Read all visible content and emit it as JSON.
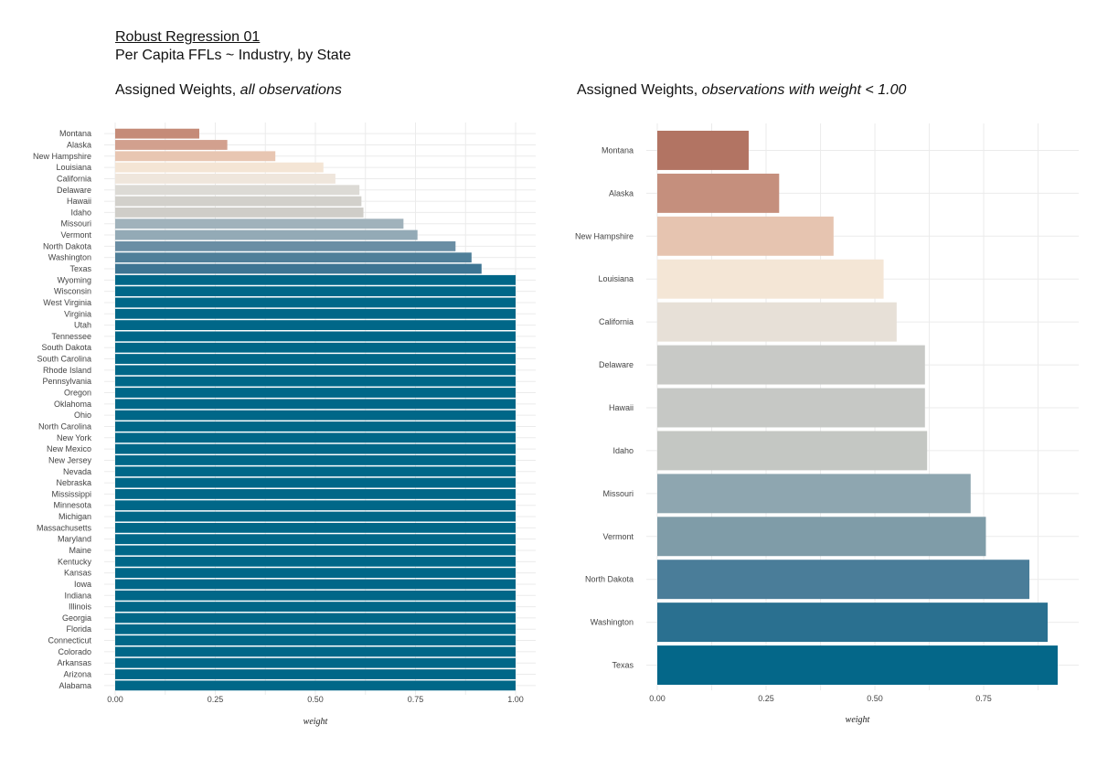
{
  "header": {
    "title": "Robust Regression 01",
    "subtitle": "Per Capita FFLs ~ Industry, by State"
  },
  "left_panel": {
    "title_plain": "Assigned Weights, ",
    "title_italic": "all observations"
  },
  "right_panel": {
    "title_plain": "Assigned Weights, ",
    "title_italic": "observations with weight < 1.00"
  },
  "chart_data": [
    {
      "type": "bar",
      "orientation": "horizontal",
      "title": "Assigned Weights, all observations",
      "xlabel": "weight",
      "ylabel": "",
      "xlim": [
        0,
        1.0
      ],
      "xticks": [
        "0.00",
        "0.25",
        "0.50",
        "0.75",
        "1.00"
      ],
      "grid": true,
      "categories": [
        "Montana",
        "Alaska",
        "New Hampshire",
        "Louisiana",
        "California",
        "Delaware",
        "Hawaii",
        "Idaho",
        "Missouri",
        "Vermont",
        "North Dakota",
        "Washington",
        "Texas",
        "Wyoming",
        "Wisconsin",
        "West Virginia",
        "Virginia",
        "Utah",
        "Tennessee",
        "South Dakota",
        "South Carolina",
        "Rhode Island",
        "Pennsylvania",
        "Oregon",
        "Oklahoma",
        "Ohio",
        "North Carolina",
        "New York",
        "New Mexico",
        "New Jersey",
        "Nevada",
        "Nebraska",
        "Mississippi",
        "Minnesota",
        "Michigan",
        "Massachusetts",
        "Maryland",
        "Maine",
        "Kentucky",
        "Kansas",
        "Iowa",
        "Indiana",
        "Illinois",
        "Georgia",
        "Florida",
        "Connecticut",
        "Colorado",
        "Arkansas",
        "Arizona",
        "Alabama"
      ],
      "values": [
        0.21,
        0.28,
        0.4,
        0.52,
        0.55,
        0.61,
        0.615,
        0.62,
        0.72,
        0.755,
        0.85,
        0.89,
        0.915,
        1,
        1,
        1,
        1,
        1,
        1,
        1,
        1,
        1,
        1,
        1,
        1,
        1,
        1,
        1,
        1,
        1,
        1,
        1,
        1,
        1,
        1,
        1,
        1,
        1,
        1,
        1,
        1,
        1,
        1,
        1,
        1,
        1,
        1,
        1,
        1,
        1
      ],
      "colors": [
        "#c58b78",
        "#d2a08e",
        "#e8c6b2",
        "#f4e5d5",
        "#efe6dc",
        "#dcdad5",
        "#d2d0cb",
        "#cfcdc8",
        "#a0b2bb",
        "#93aab6",
        "#6a8ea4",
        "#4f7f99",
        "#3d7593",
        "#006788"
      ]
    },
    {
      "type": "bar",
      "orientation": "horizontal",
      "title": "Assigned Weights, observations with weight < 1.00",
      "xlabel": "weight",
      "ylabel": "",
      "xlim": [
        0,
        0.92
      ],
      "xticks": [
        "0.00",
        "0.25",
        "0.50",
        "0.75"
      ],
      "grid": true,
      "categories": [
        "Montana",
        "Alaska",
        "New Hampshire",
        "Louisiana",
        "California",
        "Delaware",
        "Hawaii",
        "Idaho",
        "Missouri",
        "Vermont",
        "North Dakota",
        "Washington",
        "Texas"
      ],
      "values": [
        0.21,
        0.28,
        0.405,
        0.52,
        0.55,
        0.615,
        0.615,
        0.62,
        0.72,
        0.755,
        0.855,
        0.897,
        0.92
      ],
      "colors": [
        "#b27463",
        "#c58f7d",
        "#e6c4b0",
        "#f4e6d6",
        "#e7e0d7",
        "#c8c9c6",
        "#c6c8c5",
        "#c4c7c3",
        "#8ea6b0",
        "#7f9ca8",
        "#4a7d99",
        "#2a7090",
        "#046789"
      ]
    }
  ]
}
